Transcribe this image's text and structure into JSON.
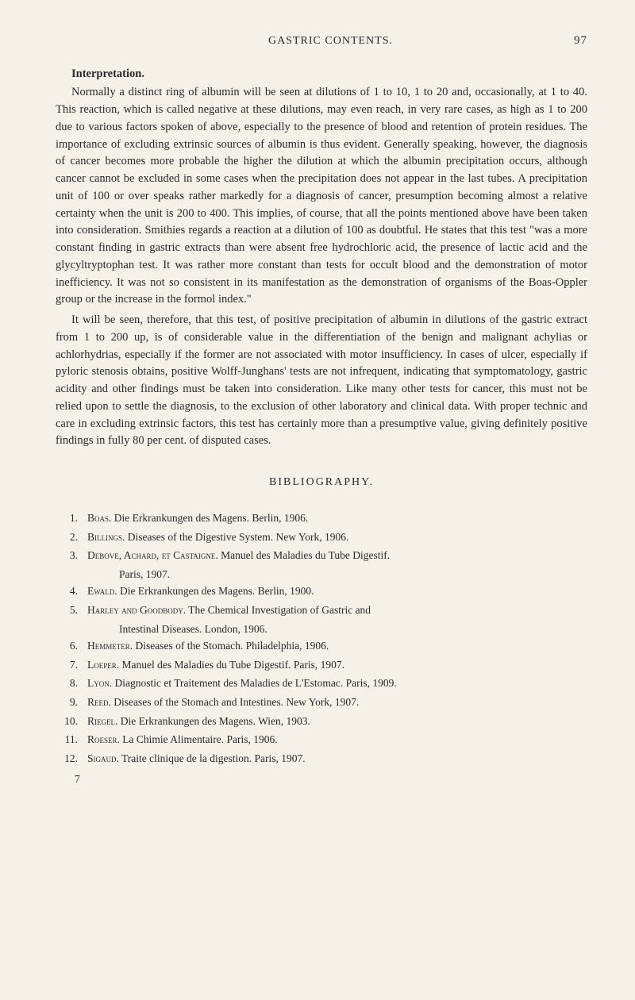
{
  "header": {
    "title": "GASTRIC CONTENTS.",
    "pageNumber": "97"
  },
  "sectionHeading": "Interpretation.",
  "paragraphs": [
    "Normally a distinct ring of albumin will be seen at dilutions of 1 to 10, 1 to 20 and, occasionally, at 1 to 40. This reaction, which is called negative at these dilutions, may even reach, in very rare cases, as high as 1 to 200 due to various factors spoken of above, especially to the presence of blood and retention of protein residues. The importance of excluding extrinsic sources of albumin is thus evident. Generally speaking, however, the diagnosis of cancer becomes more probable the higher the dilution at which the albumin precipitation occurs, although cancer cannot be excluded in some cases when the precipitation does not appear in the last tubes. A precipitation unit of 100 or over speaks rather markedly for a diagnosis of cancer, presumption becoming almost a relative certainty when the unit is 200 to 400. This implies, of course, that all the points mentioned above have been taken into consideration. Smithies regards a reaction at a dilution of 100 as doubtful. He states that this test \"was a more constant finding in gastric extracts than were absent free hydrochloric acid, the presence of lactic acid and the glycyltryptophan test. It was rather more constant than tests for occult blood and the demonstration of motor inefficiency. It was not so consistent in its manifestation as the demonstration of organisms of the Boas-Oppler group or the increase in the formol index.\"",
    "It will be seen, therefore, that this test, of positive precipitation of albumin in dilutions of the gastric extract from 1 to 200 up, is of considerable value in the differentiation of the benign and malignant achylias or achlorhydrias, especially if the former are not associated with motor insufficiency. In cases of ulcer, especially if pyloric stenosis obtains, positive Wolff-Junghans' tests are not infrequent, indicating that symptomatology, gastric acidity and other findings must be taken into consideration. Like many other tests for cancer, this must not be relied upon to settle the diagnosis, to the exclusion of other laboratory and clinical data. With proper technic and care in excluding extrinsic factors, this test has certainly more than a presumptive value, giving definitely positive findings in fully 80 per cent. of disputed cases."
  ],
  "biblioHeading": "BIBLIOGRAPHY.",
  "bibliography": [
    {
      "num": "1.",
      "author": "Boas.",
      "text": "Die Erkrankungen des Magens.  Berlin, 1906."
    },
    {
      "num": "2.",
      "author": "Billings.",
      "text": "Diseases of the Digestive System.  New York, 1906."
    },
    {
      "num": "3.",
      "author": "Debove, Achard, et Castaigne.",
      "text": "Manuel des Maladies du Tube Digestif.",
      "cont": "Paris, 1907."
    },
    {
      "num": "4.",
      "author": "Ewald.",
      "text": "Die Erkrankungen des Magens.  Berlin, 1900."
    },
    {
      "num": "5.",
      "author": "Harley and Goodbody.",
      "text": "The Chemical Investigation of Gastric and",
      "cont": "Intestinal Diseases.  London, 1906."
    },
    {
      "num": "6.",
      "author": "Hemmeter.",
      "text": "Diseases of the Stomach.  Philadelphia, 1906."
    },
    {
      "num": "7.",
      "author": "Loeper.",
      "text": "Manuel des Maladies du Tube Digestif.  Paris, 1907."
    },
    {
      "num": "8.",
      "author": "Lyon.",
      "text": "Diagnostic et Traitement des Maladies de L'Estomac.  Paris, 1909."
    },
    {
      "num": "9.",
      "author": "Reed.",
      "text": "Diseases of the Stomach and Intestines.  New York, 1907."
    },
    {
      "num": "10.",
      "author": "Riegel.",
      "text": "Die Erkrankungen des Magens.  Wien, 1903."
    },
    {
      "num": "11.",
      "author": "Roeser.",
      "text": "La Chimie Alimentaire.  Paris, 1906."
    },
    {
      "num": "12.",
      "author": "Sigaud.",
      "text": "Traite clinique de la digestion.  Paris, 1907."
    }
  ],
  "footerNum": "7"
}
